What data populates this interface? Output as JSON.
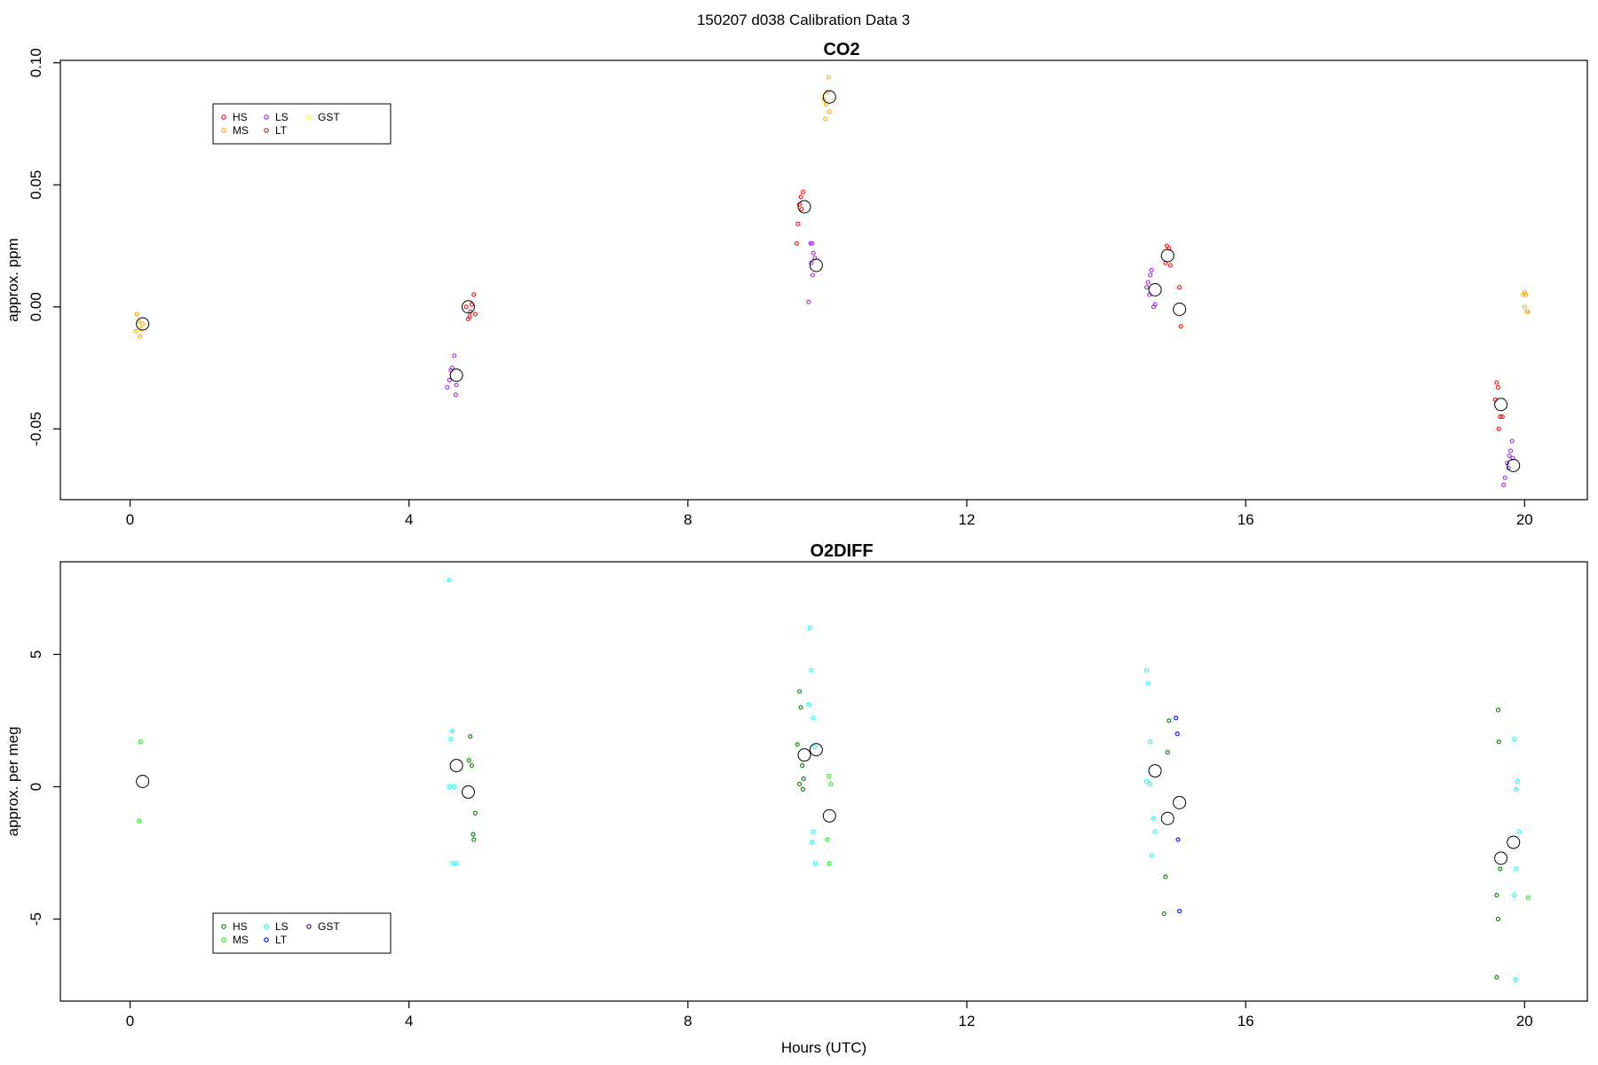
{
  "title": "150207   d038   Calibration Data 3",
  "panels": [
    {
      "title": "CO2",
      "ylabel": "approx. ppm",
      "xlabel": "",
      "xlim": [
        -1,
        20.9
      ],
      "ylim": [
        -0.079,
        0.101
      ],
      "xticks": [
        "0",
        "4",
        "8",
        "12",
        "16",
        "20"
      ],
      "yticks": [
        "-0.05",
        "0.00",
        "0.05",
        "0.10"
      ],
      "legend": {
        "position": "top-left",
        "columns": [
          [
            "HS",
            "MS"
          ],
          [
            "LS",
            "LT"
          ],
          [
            "GST"
          ]
        ]
      }
    },
    {
      "title": "O2DIFF",
      "ylabel": "approx. per meg",
      "xlabel": "Hours (UTC)",
      "xlim": [
        -1,
        20.9
      ],
      "ylim": [
        -8.1,
        8.5
      ],
      "xticks": [
        "0",
        "4",
        "8",
        "12",
        "16",
        "20"
      ],
      "yticks": [
        "-5",
        "0",
        "5"
      ],
      "legend": {
        "position": "bottom-left",
        "columns": [
          [
            "HS",
            "MS"
          ],
          [
            "LS",
            "LT"
          ],
          [
            "GST"
          ]
        ]
      }
    }
  ],
  "chart_data": [
    {
      "type": "scatter",
      "title": "CO2",
      "xlabel": "",
      "ylabel": "approx. ppm",
      "xlim": [
        -1,
        20.9
      ],
      "ylim": [
        -0.079,
        0.101
      ],
      "grid": false,
      "legend_position": "top-left",
      "series": [
        {
          "name": "HS",
          "color": "#ff0000",
          "points": [
            [
              4.85,
              -0.005
            ],
            [
              4.88,
              -0.002
            ],
            [
              4.9,
              0.001
            ],
            [
              4.82,
              0.0
            ],
            [
              4.87,
              -0.004
            ],
            [
              4.93,
              0.005
            ],
            [
              4.95,
              -0.003
            ],
            [
              9.65,
              0.047
            ],
            [
              9.62,
              0.045
            ],
            [
              9.6,
              0.042
            ],
            [
              9.58,
              0.034
            ],
            [
              9.56,
              0.026
            ],
            [
              9.63,
              0.04
            ],
            [
              14.87,
              0.025
            ],
            [
              14.9,
              0.024
            ],
            [
              14.85,
              0.018
            ],
            [
              14.92,
              0.017
            ],
            [
              15.05,
              0.008
            ],
            [
              15.07,
              -0.008
            ],
            [
              19.6,
              -0.031
            ],
            [
              19.62,
              -0.033
            ],
            [
              19.65,
              -0.045
            ],
            [
              19.68,
              -0.045
            ],
            [
              19.63,
              -0.05
            ],
            [
              19.58,
              -0.038
            ]
          ]
        },
        {
          "name": "MS",
          "color": "#ffa500",
          "points": [
            [
              0.1,
              -0.003
            ],
            [
              0.12,
              -0.006
            ],
            [
              0.15,
              -0.009
            ],
            [
              0.08,
              -0.01
            ],
            [
              0.14,
              -0.012
            ],
            [
              0.18,
              -0.007
            ],
            [
              10.02,
              0.094
            ],
            [
              10.0,
              0.088
            ],
            [
              9.95,
              0.085
            ],
            [
              9.98,
              0.083
            ],
            [
              10.03,
              0.08
            ],
            [
              9.97,
              0.077
            ],
            [
              20.0,
              0.006
            ],
            [
              20.02,
              0.005
            ],
            [
              19.98,
              0.005
            ],
            [
              20.0,
              0.0
            ],
            [
              20.03,
              -0.002
            ],
            [
              20.05,
              -0.002
            ]
          ]
        },
        {
          "name": "LS",
          "color": "#a020f0",
          "points": [
            [
              4.65,
              -0.02
            ],
            [
              4.62,
              -0.025
            ],
            [
              4.6,
              -0.026
            ],
            [
              4.58,
              -0.03
            ],
            [
              4.55,
              -0.033
            ],
            [
              4.68,
              -0.032
            ],
            [
              4.67,
              -0.036
            ],
            [
              9.78,
              0.026
            ],
            [
              9.8,
              0.022
            ],
            [
              9.82,
              0.02
            ],
            [
              9.76,
              0.026
            ],
            [
              9.79,
              0.013
            ],
            [
              9.77,
              0.018
            ],
            [
              9.73,
              0.002
            ],
            [
              14.6,
              0.01
            ],
            [
              14.63,
              0.013
            ],
            [
              14.65,
              0.015
            ],
            [
              14.58,
              0.008
            ],
            [
              14.68,
              0.0
            ],
            [
              14.7,
              0.001
            ],
            [
              14.62,
              0.005
            ],
            [
              19.82,
              -0.055
            ],
            [
              19.8,
              -0.059
            ],
            [
              19.78,
              -0.061
            ],
            [
              19.83,
              -0.062
            ],
            [
              19.75,
              -0.064
            ],
            [
              19.77,
              -0.066
            ],
            [
              19.72,
              -0.07
            ],
            [
              19.7,
              -0.073
            ]
          ]
        },
        {
          "name": "LT",
          "color": "#b22222",
          "points": []
        },
        {
          "name": "GST",
          "color": "#ffff00",
          "points": []
        },
        {
          "name": "mean",
          "color": "#000000",
          "marker": "large-circle",
          "points": [
            [
              0.18,
              -0.007
            ],
            [
              4.68,
              -0.028
            ],
            [
              4.85,
              0.0
            ],
            [
              9.67,
              0.041
            ],
            [
              9.84,
              0.017
            ],
            [
              10.03,
              0.086
            ],
            [
              14.7,
              0.007
            ],
            [
              14.88,
              0.021
            ],
            [
              15.05,
              -0.001
            ],
            [
              19.66,
              -0.04
            ],
            [
              19.84,
              -0.065
            ]
          ]
        }
      ]
    },
    {
      "type": "scatter",
      "title": "O2DIFF",
      "xlabel": "Hours (UTC)",
      "ylabel": "approx. per meg",
      "xlim": [
        -1,
        20.9
      ],
      "ylim": [
        -8.1,
        8.5
      ],
      "grid": false,
      "legend_position": "bottom-left",
      "series": [
        {
          "name": "HS",
          "color": "#008000",
          "points": [
            [
              4.88,
              1.9
            ],
            [
              4.86,
              1.0
            ],
            [
              4.9,
              0.8
            ],
            [
              4.95,
              -1.0
            ],
            [
              4.92,
              -1.8
            ],
            [
              4.93,
              -2.0
            ],
            [
              9.6,
              3.6
            ],
            [
              9.62,
              3.0
            ],
            [
              9.57,
              1.6
            ],
            [
              9.64,
              0.8
            ],
            [
              9.66,
              0.3
            ],
            [
              9.6,
              0.1
            ],
            [
              9.65,
              -0.1
            ],
            [
              14.9,
              2.5
            ],
            [
              14.88,
              1.3
            ],
            [
              14.85,
              -3.4
            ],
            [
              14.83,
              -4.8
            ],
            [
              19.6,
              -4.1
            ],
            [
              19.62,
              -5.0
            ],
            [
              19.6,
              -7.2
            ],
            [
              19.65,
              -3.1
            ],
            [
              19.63,
              1.7
            ],
            [
              19.62,
              2.9
            ]
          ]
        },
        {
          "name": "MS",
          "color": "#00ff00",
          "points": [
            [
              0.15,
              1.7
            ],
            [
              0.13,
              -1.3
            ],
            [
              10.02,
              0.4
            ],
            [
              10.05,
              0.1
            ],
            [
              10.0,
              -2.0
            ],
            [
              10.03,
              -2.9
            ],
            [
              20.05,
              -4.2
            ]
          ]
        },
        {
          "name": "LS",
          "color": "#00ffff",
          "points": [
            [
              4.58,
              7.8
            ],
            [
              4.62,
              2.1
            ],
            [
              4.6,
              1.8
            ],
            [
              4.58,
              0.0
            ],
            [
              4.65,
              0.0
            ],
            [
              4.63,
              -2.9
            ],
            [
              4.68,
              -2.9
            ],
            [
              9.75,
              6.0
            ],
            [
              9.77,
              4.4
            ],
            [
              9.73,
              3.1
            ],
            [
              9.8,
              2.6
            ],
            [
              9.82,
              1.5
            ],
            [
              9.8,
              -1.7
            ],
            [
              9.78,
              -2.1
            ],
            [
              9.83,
              -2.9
            ],
            [
              14.58,
              4.4
            ],
            [
              14.6,
              3.9
            ],
            [
              14.63,
              1.7
            ],
            [
              14.58,
              0.2
            ],
            [
              14.63,
              0.1
            ],
            [
              14.68,
              -1.2
            ],
            [
              14.7,
              -1.7
            ],
            [
              14.65,
              -2.6
            ],
            [
              19.85,
              1.8
            ],
            [
              19.9,
              0.2
            ],
            [
              19.88,
              -0.1
            ],
            [
              19.92,
              -1.7
            ],
            [
              19.88,
              -3.1
            ],
            [
              19.85,
              -4.1
            ],
            [
              19.87,
              -7.3
            ]
          ]
        },
        {
          "name": "LT",
          "color": "#0000ff",
          "points": [
            [
              15.0,
              2.6
            ],
            [
              15.02,
              2.0
            ],
            [
              15.03,
              -2.0
            ],
            [
              15.05,
              -4.7
            ]
          ]
        },
        {
          "name": "GST",
          "color": "#4b0082",
          "points": []
        },
        {
          "name": "mean",
          "color": "#000000",
          "marker": "large-circle",
          "points": [
            [
              0.18,
              0.2
            ],
            [
              4.68,
              0.8
            ],
            [
              4.85,
              -0.2
            ],
            [
              9.67,
              1.2
            ],
            [
              9.84,
              1.4
            ],
            [
              10.03,
              -1.1
            ],
            [
              14.7,
              0.6
            ],
            [
              14.88,
              -1.2
            ],
            [
              15.05,
              -0.6
            ],
            [
              19.66,
              -2.7
            ],
            [
              19.84,
              -2.1
            ]
          ]
        }
      ]
    }
  ]
}
